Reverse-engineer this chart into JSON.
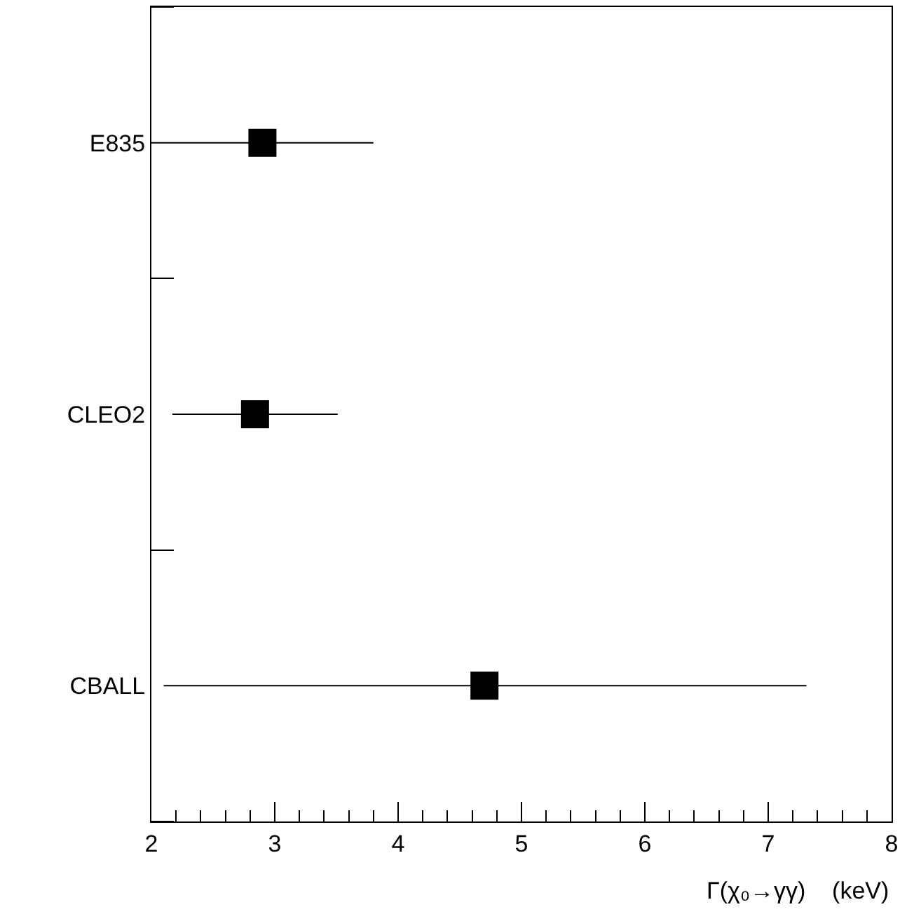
{
  "chart_data": {
    "type": "scatter",
    "xlabel": "Γ(χ₀→γγ)    (keV)",
    "categories": [
      "E835",
      "CLEO2",
      "CBALL"
    ],
    "orientation": "horizontal",
    "values": [
      2.9,
      2.84,
      4.7
    ],
    "errors": [
      [
        2.0,
        3.8
      ],
      [
        2.17,
        3.51
      ],
      [
        2.1,
        7.31
      ]
    ],
    "color": "#000000",
    "marker": "square",
    "xlim": [
      2,
      8
    ],
    "xticks": [
      2,
      {
        "value": 2.2,
        "label": null
      },
      {
        "value": 2.4,
        "label": null
      },
      {
        "value": 2.6,
        "label": null
      },
      {
        "value": 2.8,
        "label": null
      },
      3,
      {
        "value": 3.2,
        "label": null
      },
      {
        "value": 3.4,
        "label": null
      },
      {
        "value": 3.6,
        "label": null
      },
      {
        "value": 3.8,
        "label": null
      },
      4,
      {
        "value": 4.2,
        "label": null
      },
      {
        "value": 4.4,
        "label": null
      },
      {
        "value": 4.6,
        "label": null
      },
      {
        "value": 4.8,
        "label": null
      },
      5,
      {
        "value": 5.2,
        "label": null
      },
      {
        "value": 5.4,
        "label": null
      },
      {
        "value": 5.6,
        "label": null
      },
      {
        "value": 5.8,
        "label": null
      },
      6,
      {
        "value": 6.2,
        "label": null
      },
      {
        "value": 6.4,
        "label": null
      },
      {
        "value": 6.6,
        "label": null
      },
      {
        "value": 6.8,
        "label": null
      },
      7,
      {
        "value": 7.2,
        "label": null
      },
      {
        "value": 7.4,
        "label": null
      },
      {
        "value": 7.6,
        "label": null
      },
      {
        "value": 7.8,
        "label": null
      },
      8
    ]
  }
}
